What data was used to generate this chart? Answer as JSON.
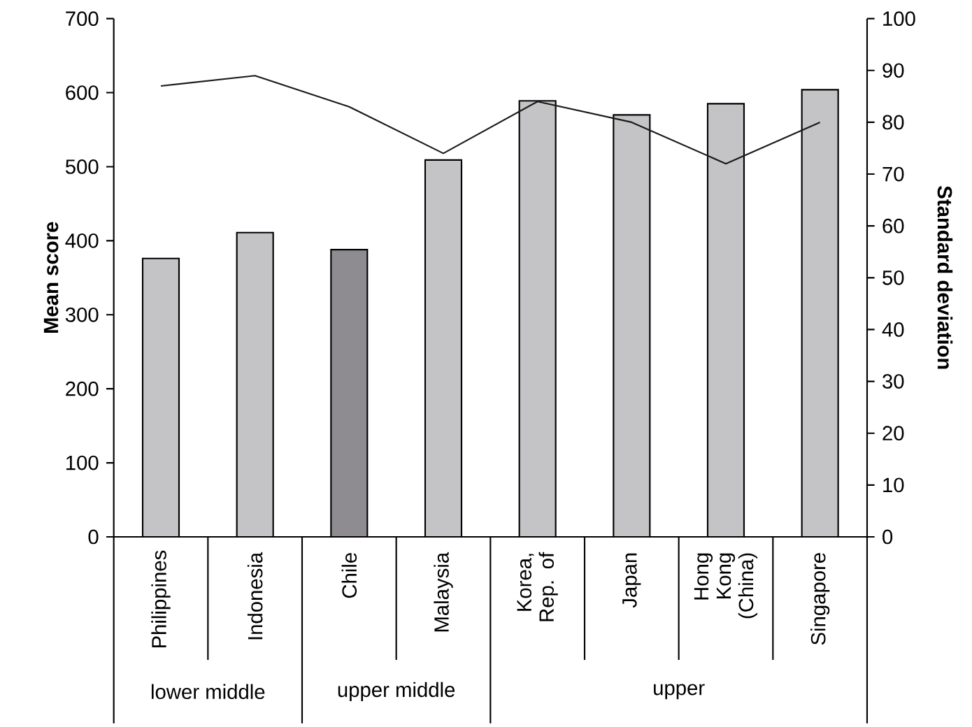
{
  "chart_data": {
    "type": "bar",
    "ylabel": "Mean score",
    "y2label": "Standard deviation",
    "categories": [
      "Philippines",
      "Indonesia",
      "Chile",
      "Malaysia",
      "Korea, Rep. of",
      "Japan",
      "Hong Kong (China)",
      "Singapore"
    ],
    "series": [
      {
        "colors": [
          "#c4c4c6",
          "#c4c4c6",
          "#8e8c90",
          "#c4c4c6",
          "#c4c4c6",
          "#c4c4c6",
          "#c4c4c6",
          "#c4c4c6"
        ],
        "values": [
          376,
          411,
          388,
          509,
          589,
          570,
          585,
          604
        ]
      },
      {
        "type": "line",
        "axis": "y2",
        "color": "#1a1a1a",
        "values": [
          87,
          89,
          83,
          74,
          84,
          80,
          72,
          80
        ]
      }
    ],
    "ylim": [
      0,
      700
    ],
    "yticks": [
      0,
      100,
      200,
      300,
      400,
      500,
      600,
      700
    ],
    "y2lim": [
      0,
      100
    ],
    "y2ticks": [
      0,
      10,
      20,
      30,
      40,
      50,
      60,
      70,
      80,
      90,
      100
    ],
    "annotations": [
      "lower middle",
      "upper middle",
      "upper"
    ]
  }
}
